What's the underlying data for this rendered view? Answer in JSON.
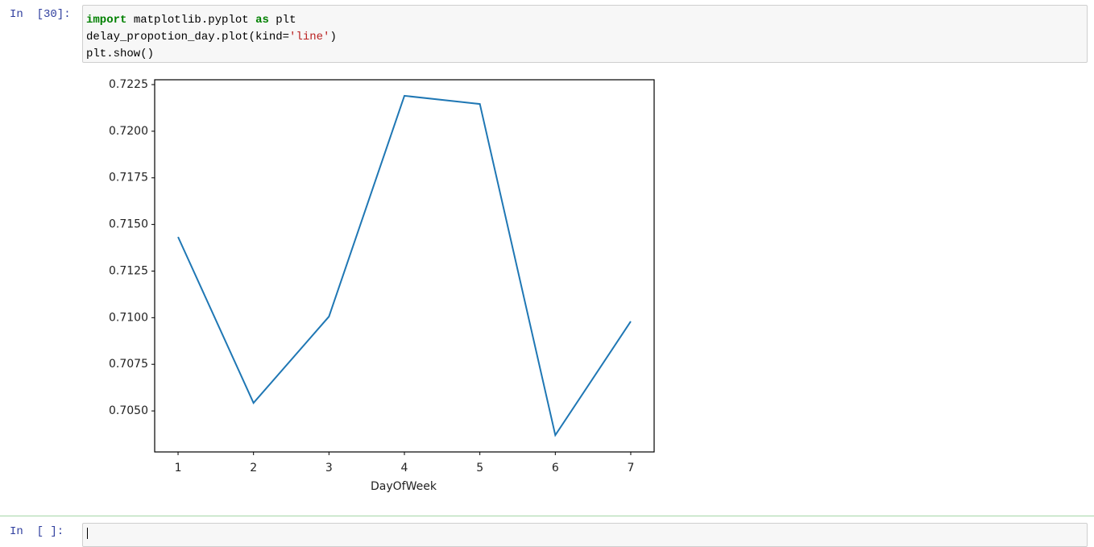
{
  "cells": [
    {
      "prompt": "In  [30]:",
      "code": [
        [
          "import",
          " matplotlib.pyplot ",
          "as",
          " plt"
        ],
        [
          "delay_propotion_day.plot(kind=",
          "'line'",
          ")"
        ],
        [
          "plt.show()"
        ]
      ]
    },
    {
      "prompt": "In  [ ]:"
    }
  ],
  "chart_data": {
    "type": "line",
    "xlabel": "DayOfWeek",
    "x": [
      1,
      2,
      3,
      4,
      5,
      6,
      7
    ],
    "series": [
      {
        "color": "#1f77b4",
        "values": [
          0.71433,
          0.70543,
          0.71006,
          0.7219,
          0.72146,
          0.7037,
          0.7098
        ]
      }
    ],
    "xlim": [
      0.69,
      7.31
    ],
    "xticks": [
      1,
      2,
      3,
      4,
      5,
      6,
      7
    ],
    "ylim": [
      0.7028,
      0.72276
    ],
    "yticks": [
      {
        "value": 0.705,
        "label": "0.7050"
      },
      0.7075,
      {
        "value": 0.71,
        "label": "0.7100"
      },
      0.7125,
      {
        "value": 0.715,
        "label": "0.7150"
      },
      0.7175,
      {
        "value": 0.72,
        "label": "0.7200"
      },
      0.7225
    ],
    "grid": false
  }
}
